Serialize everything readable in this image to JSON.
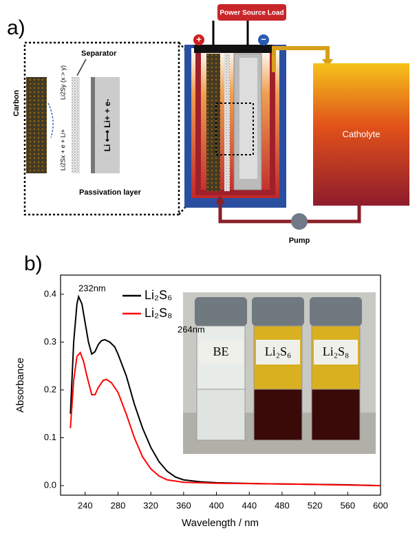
{
  "panel_a": {
    "label": "a)",
    "power_source": "Power Source Load",
    "positive": "+",
    "negative": "−",
    "separator": "Separator",
    "species_top": "Li2Sy (x > y)",
    "carbon": "Carbon",
    "species_bottom": "Li2Sx + e + Li+",
    "reaction": "Li ⟷ Li+ + e-",
    "passivation": "Passivation layer",
    "catholyte": "Catholyte",
    "pump": "Pump"
  },
  "chart_data": {
    "type": "line",
    "panel_label": "b)",
    "xlabel": "Wavelength / nm",
    "ylabel": "Absorbance",
    "xlim": [
      210,
      600
    ],
    "xticks": [
      240,
      280,
      320,
      360,
      400,
      440,
      480,
      520,
      560,
      600
    ],
    "ylim": [
      -0.02,
      0.44
    ],
    "yticks": [
      {
        "value": 0,
        "label": "0.0"
      },
      0.1,
      0.2,
      0.3,
      0.4
    ],
    "annotations": [
      "232nm",
      "264nm"
    ],
    "series": [
      {
        "name": "Li₂S₆",
        "color": "#000000",
        "x": [
          222,
          226,
          230,
          232,
          236,
          240,
          244,
          248,
          252,
          256,
          260,
          264,
          270,
          276,
          280,
          290,
          300,
          310,
          320,
          330,
          340,
          350,
          360,
          380,
          400,
          450,
          500,
          550,
          600
        ],
        "values": [
          0.15,
          0.3,
          0.38,
          0.395,
          0.38,
          0.34,
          0.3,
          0.275,
          0.28,
          0.295,
          0.303,
          0.305,
          0.3,
          0.29,
          0.275,
          0.23,
          0.17,
          0.12,
          0.08,
          0.05,
          0.03,
          0.018,
          0.012,
          0.008,
          0.006,
          0.004,
          0.003,
          0.002,
          0.0
        ]
      },
      {
        "name": "Li₂S₈",
        "color": "#ff0000",
        "x": [
          222,
          226,
          230,
          234,
          238,
          242,
          248,
          252,
          256,
          262,
          266,
          272,
          280,
          290,
          300,
          310,
          320,
          330,
          340,
          360,
          400,
          500,
          600
        ],
        "values": [
          0.12,
          0.22,
          0.27,
          0.278,
          0.26,
          0.23,
          0.19,
          0.19,
          0.205,
          0.22,
          0.222,
          0.215,
          0.195,
          0.15,
          0.1,
          0.06,
          0.035,
          0.02,
          0.012,
          0.007,
          0.005,
          0.003,
          0.0
        ]
      }
    ],
    "inset_labels": [
      "BE",
      "Li₂S₆",
      "Li₂S₈"
    ]
  }
}
